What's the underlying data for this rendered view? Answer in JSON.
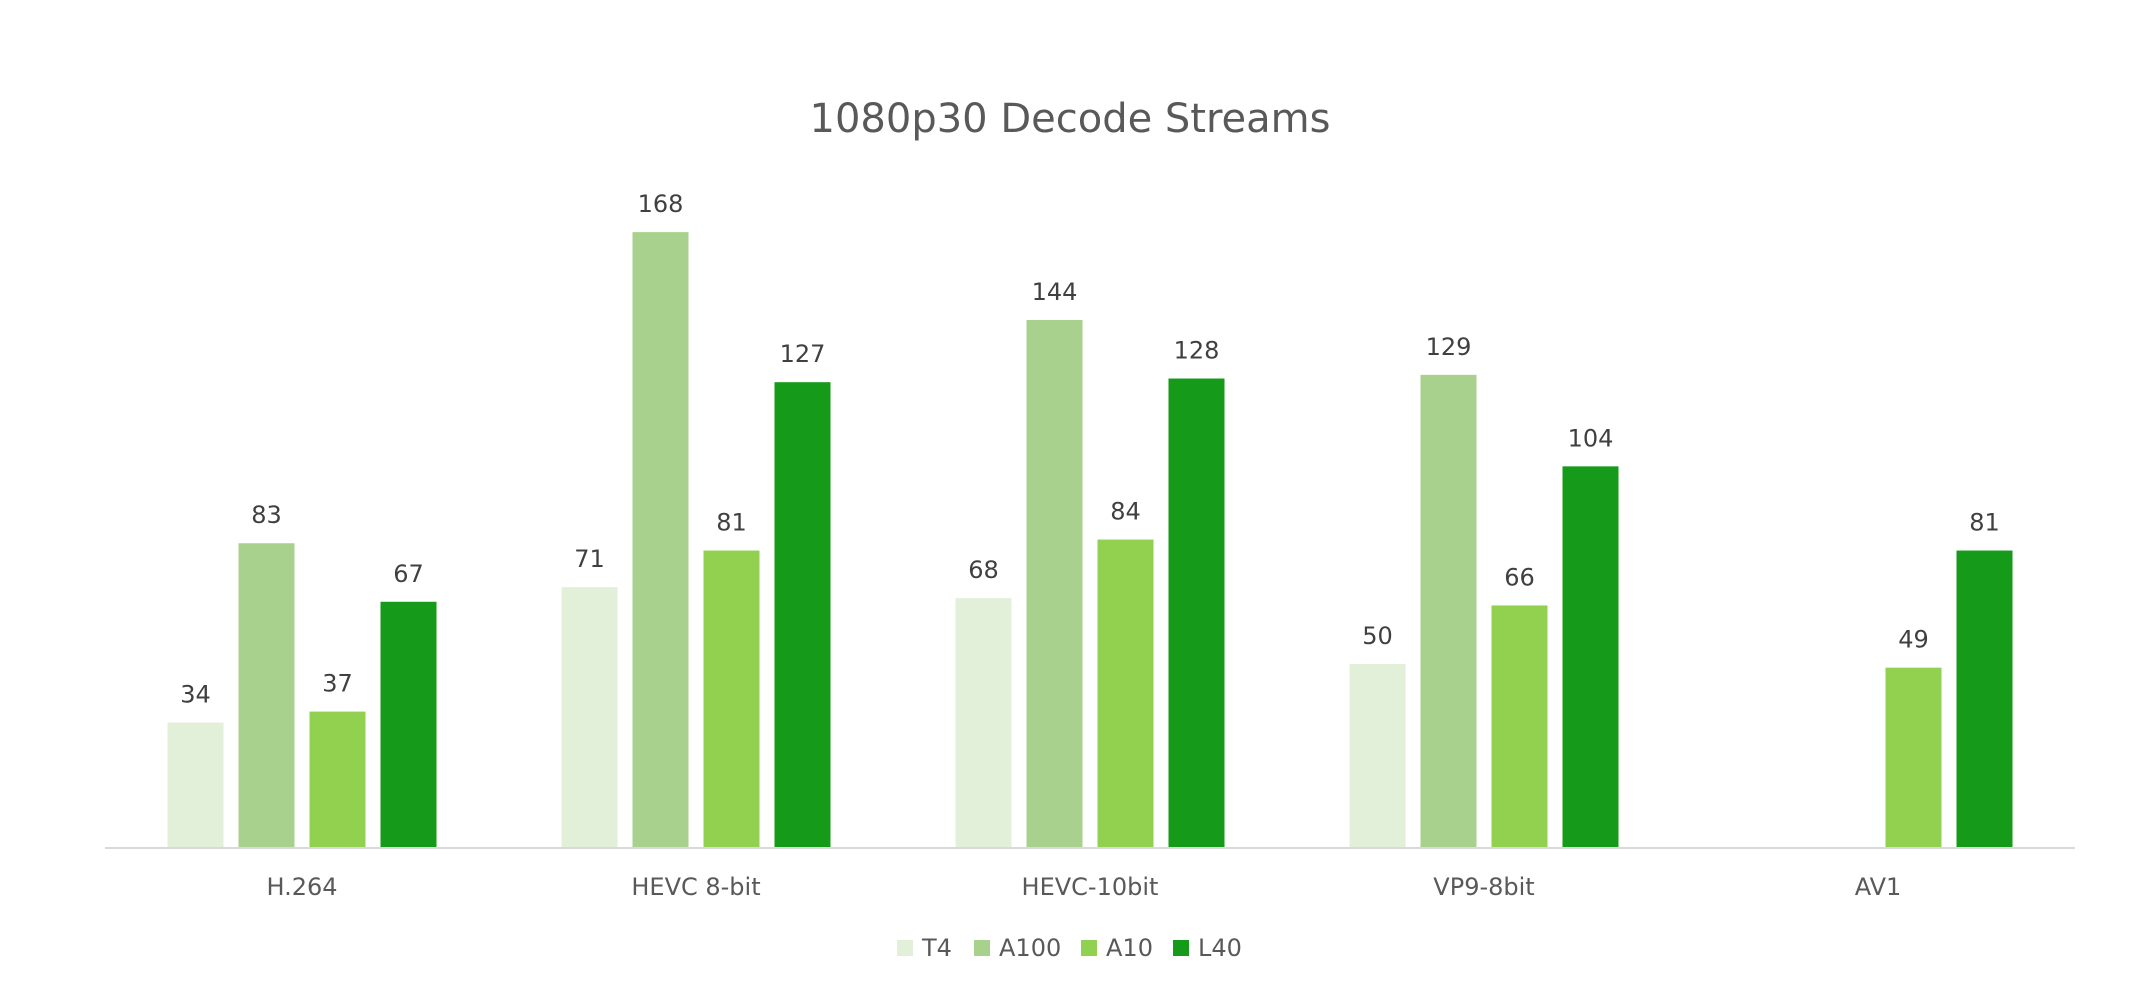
{
  "chart_data": {
    "type": "bar",
    "title": "1080p30 Decode Streams",
    "xlabel": "",
    "ylabel": "",
    "ylim": [
      0,
      180
    ],
    "grid": false,
    "legend_position": "bottom",
    "categories": [
      "H.264",
      "HEVC 8-bit",
      "HEVC-10bit",
      "VP9-8bit",
      "AV1"
    ],
    "series": [
      {
        "name": "T4",
        "color": "#e2f0d9",
        "values": [
          34,
          71,
          68,
          50,
          null
        ]
      },
      {
        "name": "A100",
        "color": "#a9d18e",
        "values": [
          83,
          168,
          144,
          129,
          null
        ]
      },
      {
        "name": "A10",
        "color": "#92d050",
        "values": [
          37,
          81,
          84,
          66,
          49
        ]
      },
      {
        "name": "L40",
        "color": "#159a19",
        "values": [
          67,
          127,
          128,
          104,
          81
        ]
      }
    ]
  }
}
